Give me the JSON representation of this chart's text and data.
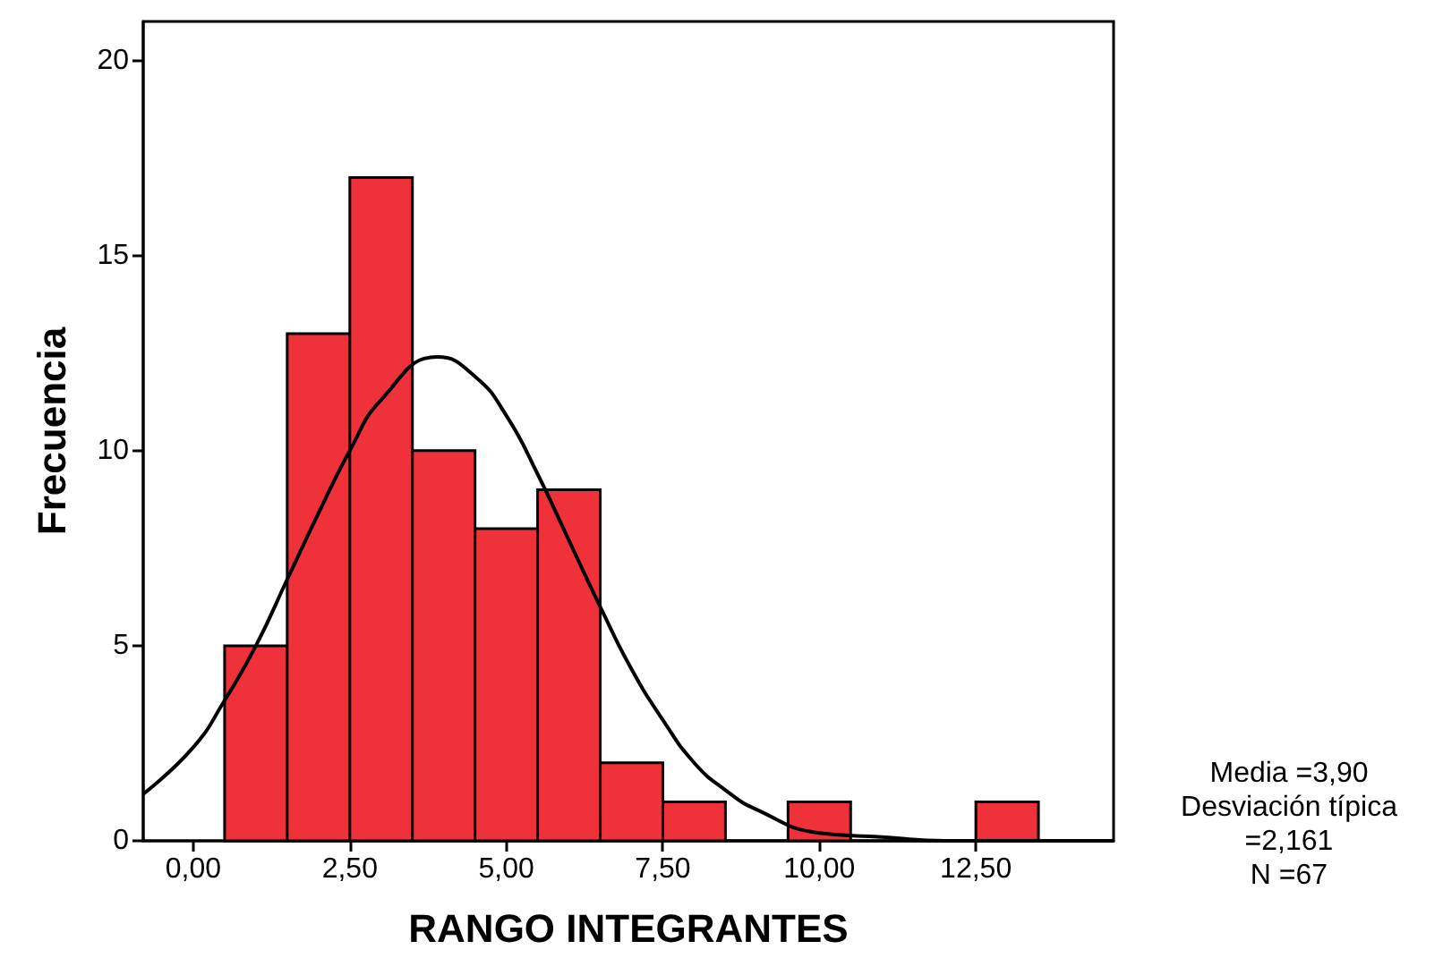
{
  "chart_data": {
    "type": "histogram",
    "xlabel": "RANGO INTEGRANTES",
    "ylabel": "Frecuencia",
    "series": [
      {
        "color": "#ef323a",
        "bins": [
          0.5,
          1.5,
          2.5,
          3.5,
          4.5,
          5.5,
          6.5,
          7.5,
          8.5,
          9.5,
          10.5,
          11.5,
          12.5,
          13.5
        ],
        "values": [
          5,
          13,
          17,
          10,
          8,
          9,
          2,
          1,
          0,
          1,
          0,
          0,
          1
        ]
      },
      {
        "type": "line",
        "color": "#000000",
        "x": [
          -0.8,
          0,
          0.5,
          1,
          1.5,
          2,
          2.5,
          3,
          3.9,
          4.5,
          5,
          5.5,
          6,
          6.5,
          7,
          7.5,
          8,
          8.5,
          9,
          10,
          11,
          12,
          13,
          14.7
        ],
        "values": [
          1.2,
          2.4,
          3.6,
          5.0,
          6.7,
          8.4,
          10.0,
          11.3,
          12.4,
          11.9,
          10.9,
          9.4,
          7.7,
          6.0,
          4.4,
          3.1,
          2.0,
          1.3,
          0.8,
          0.2,
          0.1,
          0,
          0,
          0
        ]
      }
    ],
    "xlim": [
      -0.8,
      14.7
    ],
    "ylim": [
      0,
      21
    ],
    "xticks": [
      {
        "value": 0,
        "label": "0,00"
      },
      {
        "value": 2.5,
        "label": "2,50"
      },
      {
        "value": 5,
        "label": "5,00"
      },
      {
        "value": 7.5,
        "label": "7,50"
      },
      {
        "value": 10,
        "label": "10,00"
      },
      {
        "value": 12.5,
        "label": "12,50"
      }
    ],
    "yticks": [
      0,
      5,
      10,
      15,
      20
    ],
    "marker": "none",
    "annotations": [
      "Media =3,90",
      "Desviación típica =2,161",
      "N =67"
    ]
  }
}
